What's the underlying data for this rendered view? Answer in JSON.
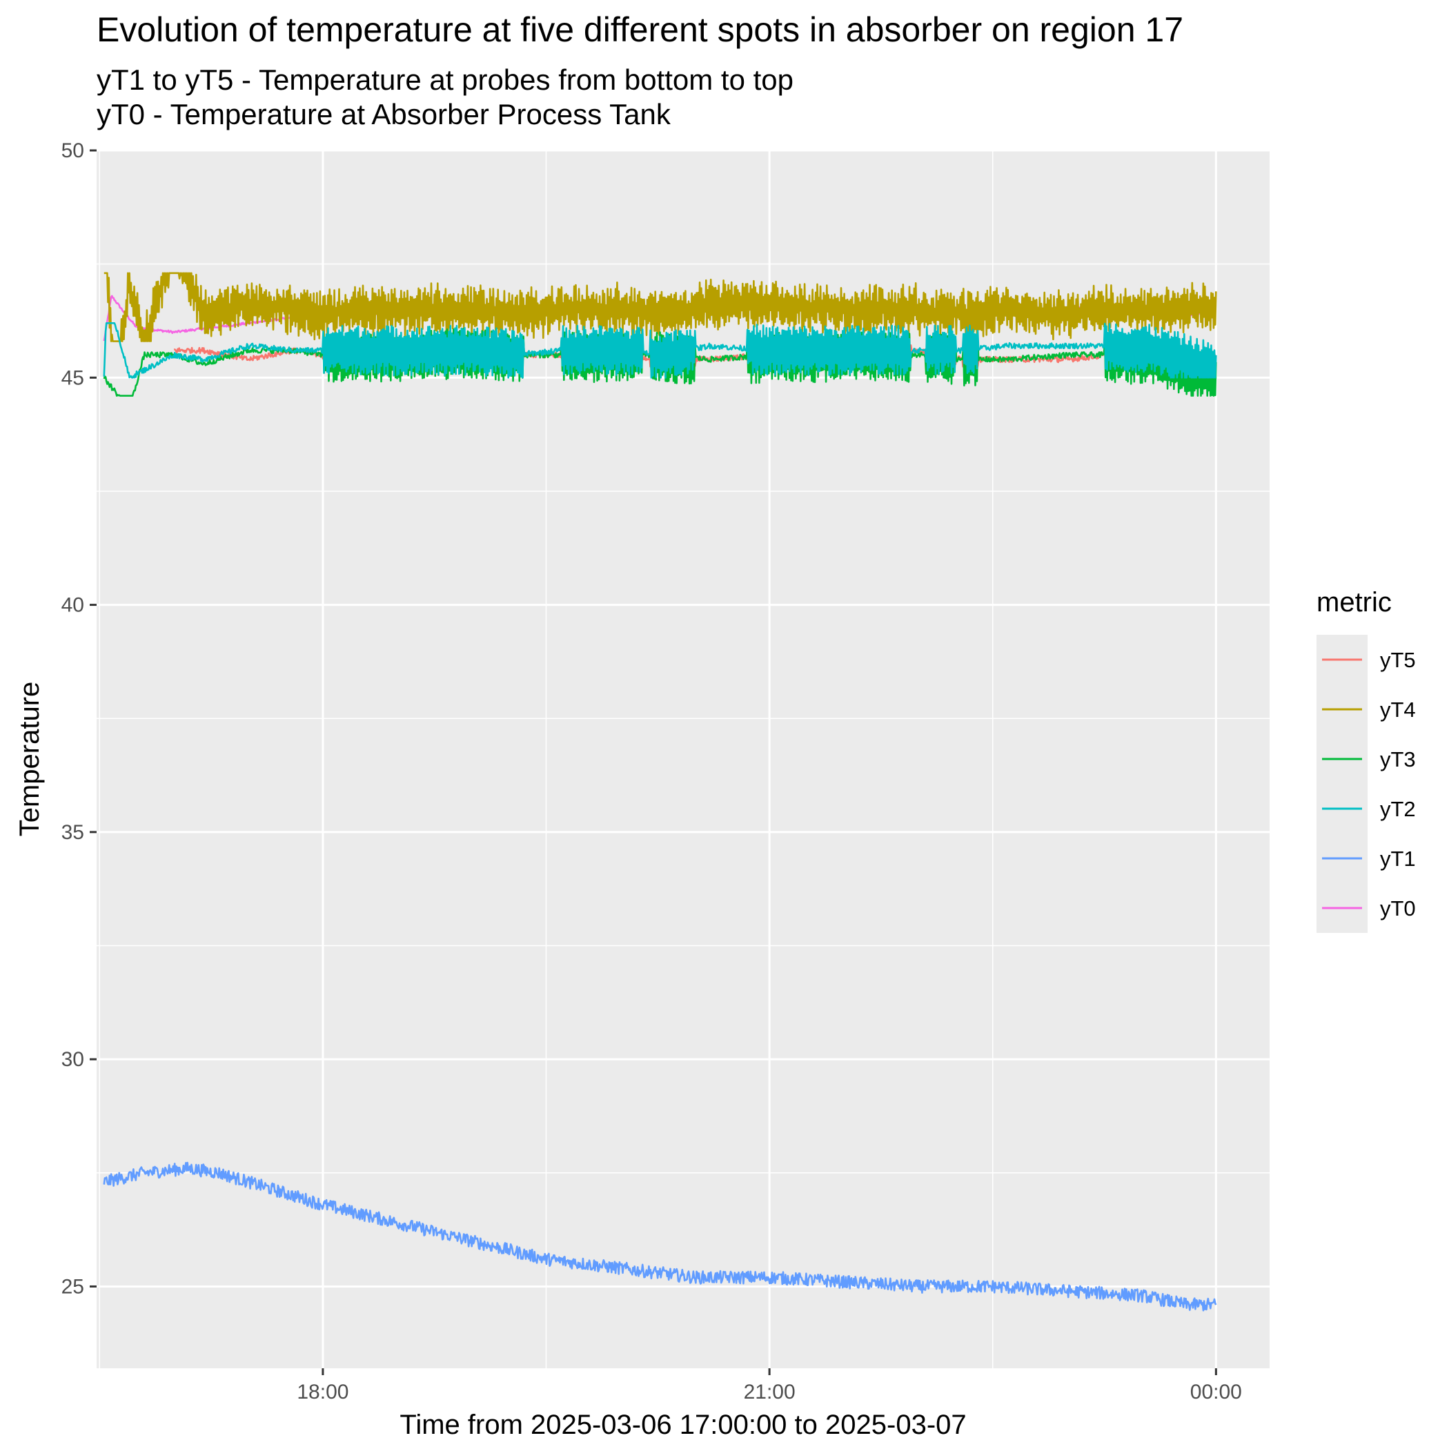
{
  "chart_data": {
    "type": "line",
    "title": "Evolution of temperature at five different spots in absorber on region 17",
    "subtitle_lines": [
      "yT1 to yT5 - Temperature at probes from bottom to top",
      "yT0 - Temperature at Absorber Process Tank"
    ],
    "xlabel": "Time from 2025-03-06 17:00:00 to 2025-03-07",
    "ylabel": "Temperature",
    "x_axis_unit": "hours of day (2025-03-06 17:00 onward; 24 = 2025-03-07 00:00)",
    "xlim": [
      16.48,
      24.36
    ],
    "ylim": [
      23.2,
      50.0
    ],
    "x_ticks": [
      {
        "value": 18,
        "label": "18:00"
      },
      {
        "value": 21,
        "label": "21:00"
      },
      {
        "value": 24,
        "label": "00:00"
      }
    ],
    "x_minor_ticks": [
      16.5,
      19.5,
      22.5
    ],
    "y_ticks": [
      {
        "value": 25,
        "label": "25"
      },
      {
        "value": 30,
        "label": "30"
      },
      {
        "value": 35,
        "label": "35"
      },
      {
        "value": 40,
        "label": "40"
      },
      {
        "value": 45,
        "label": "45"
      },
      {
        "value": 50,
        "label": "50"
      }
    ],
    "y_minor_ticks": [
      27.5,
      32.5,
      37.5,
      42.5,
      47.5
    ],
    "grid": true,
    "legend": {
      "title": "metric",
      "position": "right"
    },
    "series": [
      {
        "name": "yT5",
        "color": "#F8766D",
        "x": [
          17.0,
          17.2,
          17.5,
          17.8,
          18.0,
          18.5,
          19.0,
          19.3,
          19.6,
          20.0,
          20.3,
          20.6,
          21.0,
          21.5,
          22.0,
          22.3,
          22.6,
          23.0,
          23.3,
          23.6,
          24.0
        ],
        "y": [
          45.6,
          45.6,
          45.4,
          45.6,
          45.5,
          45.5,
          45.6,
          45.5,
          45.5,
          45.5,
          45.4,
          45.4,
          45.5,
          45.5,
          45.6,
          45.4,
          45.4,
          45.4,
          45.5,
          45.5,
          45.4
        ]
      },
      {
        "name": "yT4",
        "color": "#B79F00",
        "x": [
          16.53,
          16.6,
          16.7,
          16.8,
          17.0,
          17.2,
          17.5,
          17.8,
          18.0,
          18.5,
          19.0,
          19.3,
          19.6,
          20.0,
          20.3,
          20.6,
          21.0,
          21.5,
          22.0,
          22.3,
          22.6,
          23.0,
          23.3,
          23.6,
          24.0
        ],
        "y": [
          48.8,
          44.5,
          47.1,
          45.8,
          47.9,
          46.4,
          46.6,
          46.5,
          46.4,
          46.5,
          46.5,
          46.4,
          46.5,
          46.5,
          46.4,
          46.6,
          46.6,
          46.5,
          46.5,
          46.4,
          46.5,
          46.4,
          46.5,
          46.5,
          46.5
        ],
        "fluctuation": {
          "min": 45.8,
          "max": 47.3
        }
      },
      {
        "name": "yT3",
        "color": "#00BA38",
        "x": [
          16.53,
          16.7,
          16.8,
          17.0,
          17.2,
          17.5,
          17.8,
          18.0,
          18.5,
          19.0,
          19.3,
          19.6,
          20.0,
          20.3,
          20.6,
          21.0,
          21.5,
          22.0,
          22.3,
          22.6,
          23.0,
          23.3,
          23.6,
          24.0
        ],
        "y": [
          45.0,
          44.3,
          45.5,
          45.5,
          45.3,
          45.6,
          45.6,
          45.5,
          45.5,
          45.6,
          45.5,
          45.5,
          45.5,
          45.5,
          45.4,
          45.5,
          45.5,
          45.5,
          45.4,
          45.4,
          45.5,
          45.5,
          45.4,
          45.0
        ],
        "fluctuation": {
          "min": 44.6,
          "max": 46.1
        }
      },
      {
        "name": "yT2",
        "color": "#00BFC4",
        "x": [
          16.53,
          16.55,
          16.7,
          17.0,
          17.2,
          17.5,
          17.8,
          18.0,
          18.5,
          19.0,
          19.3,
          19.6,
          20.0,
          20.3,
          20.6,
          21.0,
          21.5,
          22.0,
          22.3,
          22.6,
          23.0,
          23.3,
          23.6,
          24.0
        ],
        "y": [
          45.0,
          46.9,
          45.0,
          45.5,
          45.4,
          45.7,
          45.6,
          45.6,
          45.6,
          45.6,
          45.5,
          45.6,
          45.6,
          45.5,
          45.7,
          45.6,
          45.6,
          45.6,
          45.6,
          45.7,
          45.7,
          45.7,
          45.6,
          45.2
        ],
        "fluctuation": {
          "min": 45.0,
          "max": 46.2
        }
      },
      {
        "name": "yT1",
        "color": "#619CFF",
        "x": [
          16.53,
          16.8,
          17.1,
          17.3,
          17.5,
          18.0,
          18.5,
          19.0,
          19.5,
          20.0,
          20.5,
          21.0,
          21.5,
          22.0,
          22.5,
          23.0,
          23.5,
          23.8,
          24.0
        ],
        "y": [
          27.3,
          27.5,
          27.6,
          27.5,
          27.3,
          26.8,
          26.4,
          26.0,
          25.6,
          25.4,
          25.2,
          25.2,
          25.1,
          25.0,
          25.0,
          24.9,
          24.8,
          24.6,
          24.6
        ]
      },
      {
        "name": "yT0",
        "color": "#F564E3",
        "x": [
          16.53,
          16.58,
          16.65,
          16.75,
          17.0,
          17.5,
          18.0,
          18.5,
          19.0,
          19.5,
          20.0,
          20.5,
          21.0,
          21.5,
          22.0,
          22.5,
          23.0,
          23.3,
          23.5,
          24.0
        ],
        "y": [
          45.8,
          46.8,
          46.5,
          46.1,
          46.0,
          46.2,
          46.4,
          46.4,
          46.5,
          46.5,
          46.4,
          46.5,
          46.6,
          46.5,
          46.5,
          46.4,
          46.5,
          46.6,
          46.4,
          46.4
        ]
      }
    ]
  }
}
